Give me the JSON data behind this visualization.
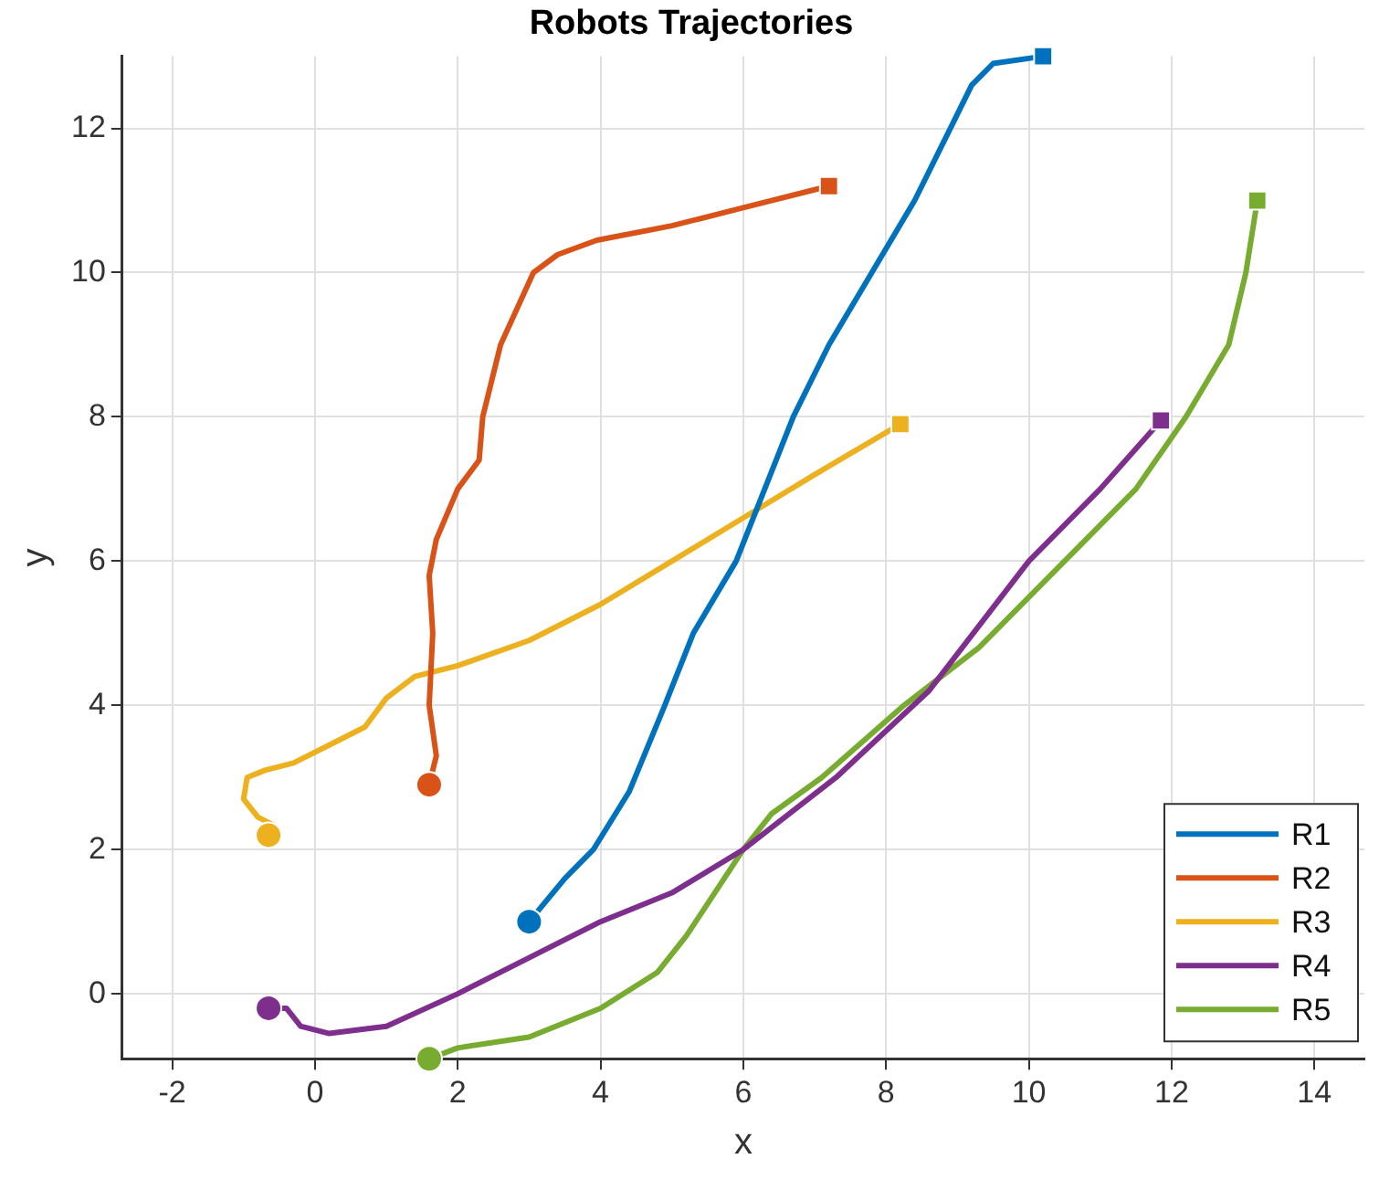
{
  "chart_data": {
    "type": "line",
    "title": "Robots Trajectories",
    "xlabel": "x",
    "ylabel": "y",
    "xlim": [
      -2.7,
      14.7
    ],
    "ylim": [
      -0.9,
      13
    ],
    "xticks": [
      -2,
      0,
      2,
      4,
      6,
      8,
      10,
      12,
      14
    ],
    "yticks": [
      0,
      2,
      4,
      6,
      8,
      10,
      12
    ],
    "grid": true,
    "legend": "bottom right",
    "marker": "none",
    "series": [
      {
        "name": "R1",
        "color": "#0072bd",
        "x": [
          3,
          3.5,
          3.9,
          4.4,
          4.9,
          5.3,
          5.9,
          6.3,
          6.7,
          7.2,
          7.8,
          8.4,
          8.9,
          9.2,
          9.5,
          10.2
        ],
        "values": [
          1,
          1.6,
          2,
          2.8,
          4,
          5,
          6,
          7,
          8,
          9,
          10,
          11,
          12,
          12.6,
          12.9,
          13
        ]
      },
      {
        "name": "R2",
        "color": "#d95319",
        "x": [
          1.6,
          1.7,
          1.6,
          1.65,
          1.6,
          1.7,
          2.0,
          2.3,
          2.35,
          2.6,
          3.06,
          3.4,
          3.95,
          5,
          6,
          7.2
        ],
        "values": [
          2.9,
          3.3,
          4,
          5,
          5.8,
          6.3,
          7,
          7.4,
          8,
          9,
          10,
          10.25,
          10.45,
          10.65,
          10.9,
          11.2
        ]
      },
      {
        "name": "R3",
        "color": "#edb120",
        "x": [
          -0.65,
          -0.6,
          -0.8,
          -1.0,
          -0.95,
          -0.7,
          -0.3,
          0.2,
          0.7,
          1.0,
          1.4,
          2,
          3,
          4,
          5,
          6,
          7,
          8.2
        ],
        "values": [
          2.2,
          2.35,
          2.45,
          2.7,
          3.0,
          3.1,
          3.2,
          3.45,
          3.7,
          4.1,
          4.4,
          4.55,
          4.9,
          5.4,
          6,
          6.6,
          7.2,
          7.9
        ]
      },
      {
        "name": "R4",
        "color": "#7e2f8e",
        "x": [
          -0.65,
          -0.4,
          -0.2,
          0.2,
          1,
          2,
          3,
          4,
          5,
          6,
          7.3,
          8.6,
          10,
          11,
          11.85
        ],
        "values": [
          -0.2,
          -0.2,
          -0.45,
          -0.55,
          -0.45,
          0,
          0.5,
          1.0,
          1.4,
          2,
          3,
          4.2,
          6,
          7,
          7.95
        ]
      },
      {
        "name": "R5",
        "color": "#77ac30",
        "x": [
          1.6,
          2,
          3,
          4,
          4.8,
          5.2,
          5.6,
          6,
          6.4,
          7.1,
          8.25,
          9.3,
          10.5,
          11.5,
          12.2,
          12.8,
          13.04,
          13.2
        ],
        "values": [
          -0.9,
          -0.75,
          -0.6,
          -0.2,
          0.3,
          0.8,
          1.4,
          2,
          2.5,
          3,
          4,
          4.8,
          6,
          7,
          8,
          9,
          10,
          11
        ]
      },
      {
        "type": "scatter",
        "marker": "circle",
        "x": [
          3,
          1.6,
          -0.65,
          -0.65,
          1.6
        ],
        "values": [
          1,
          2.9,
          2.2,
          -0.2,
          -0.9
        ],
        "colors": [
          "#0072bd",
          "#d95319",
          "#edb120",
          "#7e2f8e",
          "#77ac30"
        ]
      },
      {
        "type": "scatter",
        "marker": "square",
        "x": [
          10.2,
          7.2,
          8.2,
          11.85,
          13.2
        ],
        "values": [
          13,
          11.2,
          7.9,
          7.95,
          11
        ],
        "colors": [
          "#0072bd",
          "#d95319",
          "#edb120",
          "#7e2f8e",
          "#77ac30"
        ]
      }
    ]
  }
}
